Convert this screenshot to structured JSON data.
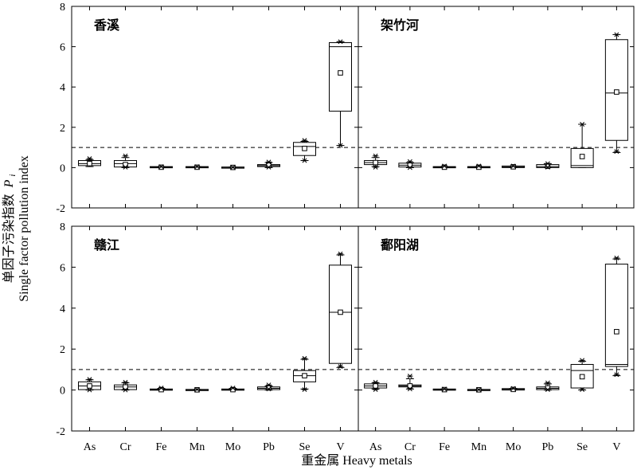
{
  "figure": {
    "ylabel_cn": "单因子污染指数",
    "ylabel_sym": "P",
    "ylabel_sub": "i",
    "ylabel_en": "Single factor pollution index",
    "xlabel": "重金属 Heavy metals"
  },
  "chart_data": [
    {
      "type": "box",
      "title": "香溪",
      "categories": [
        "As",
        "Cr",
        "Fe",
        "Mn",
        "Mo",
        "Pb",
        "Se",
        "V"
      ],
      "ylim": [
        -2,
        8
      ],
      "yticks": [
        -2,
        0,
        2,
        4,
        6,
        8
      ],
      "reference_line": 1,
      "boxes": [
        {
          "q1": 0.1,
          "median": 0.2,
          "q3": 0.35,
          "mean": 0.2,
          "min": 0.05,
          "max": 0.4,
          "outliers": [
            0.45
          ]
        },
        {
          "q1": 0.03,
          "median": 0.2,
          "q3": 0.35,
          "mean": 0.15,
          "min": 0.0,
          "max": 0.5,
          "outliers": [
            0.58,
            0.02
          ]
        },
        {
          "q1": 0.0,
          "median": 0.02,
          "q3": 0.05,
          "mean": 0.02,
          "min": 0.0,
          "max": 0.05,
          "outliers": [
            0.05
          ]
        },
        {
          "q1": 0.0,
          "median": 0.02,
          "q3": 0.05,
          "mean": 0.02,
          "min": 0.0,
          "max": 0.05,
          "outliers": [
            0.05
          ]
        },
        {
          "q1": 0.0,
          "median": 0.01,
          "q3": 0.03,
          "mean": 0.01,
          "min": 0.0,
          "max": 0.03,
          "outliers": [
            0.02
          ]
        },
        {
          "q1": 0.05,
          "median": 0.1,
          "q3": 0.15,
          "mean": 0.12,
          "min": 0.0,
          "max": 0.25,
          "outliers": [
            0.28,
            0.02
          ]
        },
        {
          "q1": 0.6,
          "median": 1.05,
          "q3": 1.25,
          "mean": 0.95,
          "min": 0.35,
          "max": 1.3,
          "outliers": [
            1.35,
            0.35
          ]
        },
        {
          "q1": 2.8,
          "median": 6.0,
          "q3": 6.2,
          "mean": 4.7,
          "min": 1.1,
          "max": 6.25,
          "outliers": [
            6.25,
            1.1
          ]
        }
      ]
    },
    {
      "type": "box",
      "title": "架竹河",
      "categories": [
        "As",
        "Cr",
        "Fe",
        "Mn",
        "Mo",
        "Pb",
        "Se",
        "V"
      ],
      "ylim": [
        -2,
        8
      ],
      "yticks": [
        -2,
        0,
        2,
        4,
        6,
        8
      ],
      "reference_line": 1,
      "boxes": [
        {
          "q1": 0.15,
          "median": 0.25,
          "q3": 0.35,
          "mean": 0.25,
          "min": 0.05,
          "max": 0.5,
          "outliers": [
            0.58,
            0.02
          ]
        },
        {
          "q1": 0.03,
          "median": 0.12,
          "q3": 0.22,
          "mean": 0.12,
          "min": 0.0,
          "max": 0.25,
          "outliers": [
            0.3,
            0.0
          ]
        },
        {
          "q1": 0.0,
          "median": 0.02,
          "q3": 0.05,
          "mean": 0.02,
          "min": 0.0,
          "max": 0.05,
          "outliers": [
            0.08
          ]
        },
        {
          "q1": 0.0,
          "median": 0.02,
          "q3": 0.05,
          "mean": 0.02,
          "min": 0.0,
          "max": 0.05,
          "outliers": [
            0.08
          ]
        },
        {
          "q1": 0.0,
          "median": 0.03,
          "q3": 0.08,
          "mean": 0.04,
          "min": 0.0,
          "max": 0.08,
          "outliers": [
            0.08
          ]
        },
        {
          "q1": 0.0,
          "median": 0.05,
          "q3": 0.15,
          "mean": 0.07,
          "min": 0.0,
          "max": 0.2,
          "outliers": [
            0.2,
            0.02
          ]
        },
        {
          "q1": 0.0,
          "median": 0.1,
          "q3": 0.95,
          "mean": 0.55,
          "min": 0.0,
          "max": 2.15,
          "outliers": [
            2.15
          ]
        },
        {
          "q1": 1.35,
          "median": 3.7,
          "q3": 6.35,
          "mean": 3.75,
          "min": 0.75,
          "max": 6.6,
          "outliers": [
            6.6,
            0.8
          ]
        }
      ]
    },
    {
      "type": "box",
      "title": "赣江",
      "categories": [
        "As",
        "Cr",
        "Fe",
        "Mn",
        "Mo",
        "Pb",
        "Se",
        "V"
      ],
      "ylim": [
        -2,
        8
      ],
      "yticks": [
        -2,
        0,
        2,
        4,
        6,
        8
      ],
      "reference_line": 1,
      "boxes": [
        {
          "q1": 0.02,
          "median": 0.2,
          "q3": 0.4,
          "mean": 0.2,
          "min": 0.0,
          "max": 0.5,
          "outliers": [
            0.52,
            0.0
          ]
        },
        {
          "q1": 0.02,
          "median": 0.15,
          "q3": 0.25,
          "mean": 0.15,
          "min": 0.0,
          "max": 0.35,
          "outliers": [
            0.38,
            0.0
          ]
        },
        {
          "q1": 0.0,
          "median": 0.02,
          "q3": 0.05,
          "mean": 0.02,
          "min": 0.0,
          "max": 0.08,
          "outliers": [
            0.1
          ]
        },
        {
          "q1": 0.0,
          "median": 0.01,
          "q3": 0.03,
          "mean": 0.01,
          "min": 0.0,
          "max": 0.03,
          "outliers": [
            0.03
          ]
        },
        {
          "q1": 0.0,
          "median": 0.02,
          "q3": 0.05,
          "mean": 0.02,
          "min": 0.0,
          "max": 0.08,
          "outliers": [
            0.1
          ]
        },
        {
          "q1": 0.02,
          "median": 0.08,
          "q3": 0.15,
          "mean": 0.1,
          "min": 0.0,
          "max": 0.2,
          "outliers": [
            0.25,
            0.05
          ]
        },
        {
          "q1": 0.4,
          "median": 0.7,
          "q3": 0.95,
          "mean": 0.7,
          "min": 0.05,
          "max": 1.5,
          "outliers": [
            1.55,
            0.02
          ]
        },
        {
          "q1": 1.3,
          "median": 3.8,
          "q3": 6.1,
          "mean": 3.8,
          "min": 1.1,
          "max": 6.6,
          "outliers": [
            6.65,
            1.15
          ]
        }
      ]
    },
    {
      "type": "box",
      "title": "鄱阳湖",
      "categories": [
        "As",
        "Cr",
        "Fe",
        "Mn",
        "Mo",
        "Pb",
        "Se",
        "V"
      ],
      "ylim": [
        -2,
        8
      ],
      "yticks": [
        -2,
        0,
        2,
        4,
        6,
        8
      ],
      "reference_line": 1,
      "boxes": [
        {
          "q1": 0.1,
          "median": 0.2,
          "q3": 0.3,
          "mean": 0.2,
          "min": 0.05,
          "max": 0.35,
          "outliers": [
            0.38,
            0.02
          ]
        },
        {
          "q1": 0.15,
          "median": 0.2,
          "q3": 0.25,
          "mean": 0.2,
          "min": 0.05,
          "max": 0.55,
          "outliers": [
            0.68,
            0.05
          ]
        },
        {
          "q1": 0.0,
          "median": 0.02,
          "q3": 0.05,
          "mean": 0.02,
          "min": 0.0,
          "max": 0.05,
          "outliers": [
            0.05
          ]
        },
        {
          "q1": 0.0,
          "median": 0.01,
          "q3": 0.03,
          "mean": 0.01,
          "min": 0.0,
          "max": 0.03,
          "outliers": [
            0.02
          ]
        },
        {
          "q1": 0.0,
          "median": 0.03,
          "q3": 0.07,
          "mean": 0.03,
          "min": 0.0,
          "max": 0.08,
          "outliers": [
            0.08
          ]
        },
        {
          "q1": 0.02,
          "median": 0.08,
          "q3": 0.15,
          "mean": 0.1,
          "min": 0.0,
          "max": 0.3,
          "outliers": [
            0.35,
            0.02
          ]
        },
        {
          "q1": 0.1,
          "median": 0.95,
          "q3": 1.25,
          "mean": 0.65,
          "min": 0.0,
          "max": 1.4,
          "outliers": [
            1.45,
            0.02
          ]
        },
        {
          "q1": 1.15,
          "median": 1.25,
          "q3": 6.15,
          "mean": 2.85,
          "min": 0.7,
          "max": 6.4,
          "outliers": [
            6.45,
            0.75
          ]
        }
      ]
    }
  ]
}
